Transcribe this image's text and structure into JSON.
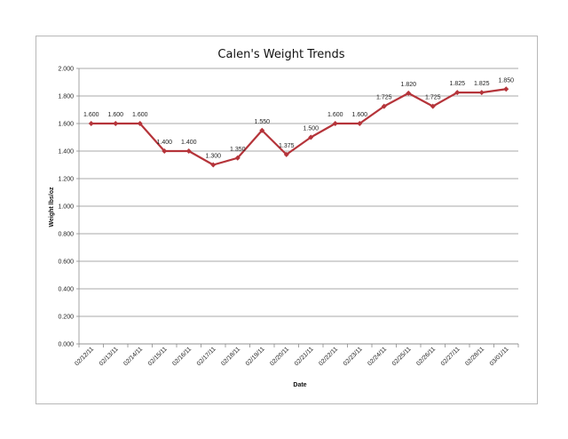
{
  "chart_data": {
    "type": "line",
    "title": "Calen's Weight Trends",
    "xlabel": "Date",
    "ylabel": "Weight lbs/oz",
    "ylim": [
      0,
      2
    ],
    "yticks": [
      "0.000",
      "0.200",
      "0.400",
      "0.600",
      "0.800",
      "1.000",
      "1.200",
      "1.400",
      "1.600",
      "1.800",
      "2.000"
    ],
    "grid": true,
    "legend": "none",
    "categories": [
      "02/12/11",
      "02/13/11",
      "02/14/11",
      "02/15/11",
      "02/16/11",
      "02/17/11",
      "02/18/11",
      "02/19/11",
      "02/20/11",
      "02/21/11",
      "02/22/11",
      "02/23/11",
      "02/24/11",
      "02/25/11",
      "02/26/11",
      "02/27/11",
      "02/28/11",
      "03/01/11"
    ],
    "series": [
      {
        "values": [
          1.6,
          1.6,
          1.6,
          1.4,
          1.4,
          1.3,
          1.35,
          1.55,
          1.375,
          1.5,
          1.6,
          1.6,
          1.725,
          1.82,
          1.725,
          1.825,
          1.825,
          1.85
        ],
        "data_labels": [
          "1.600",
          "1.600",
          "1.600",
          "1.400",
          "1.400",
          "1.300",
          "1.350",
          "1.550",
          "1.375",
          "1.500",
          "1.600",
          "1.600",
          "1.725",
          "1.820",
          "1.725",
          "1.825",
          "1.825",
          "1.850"
        ],
        "color": "#b5343a"
      }
    ]
  }
}
